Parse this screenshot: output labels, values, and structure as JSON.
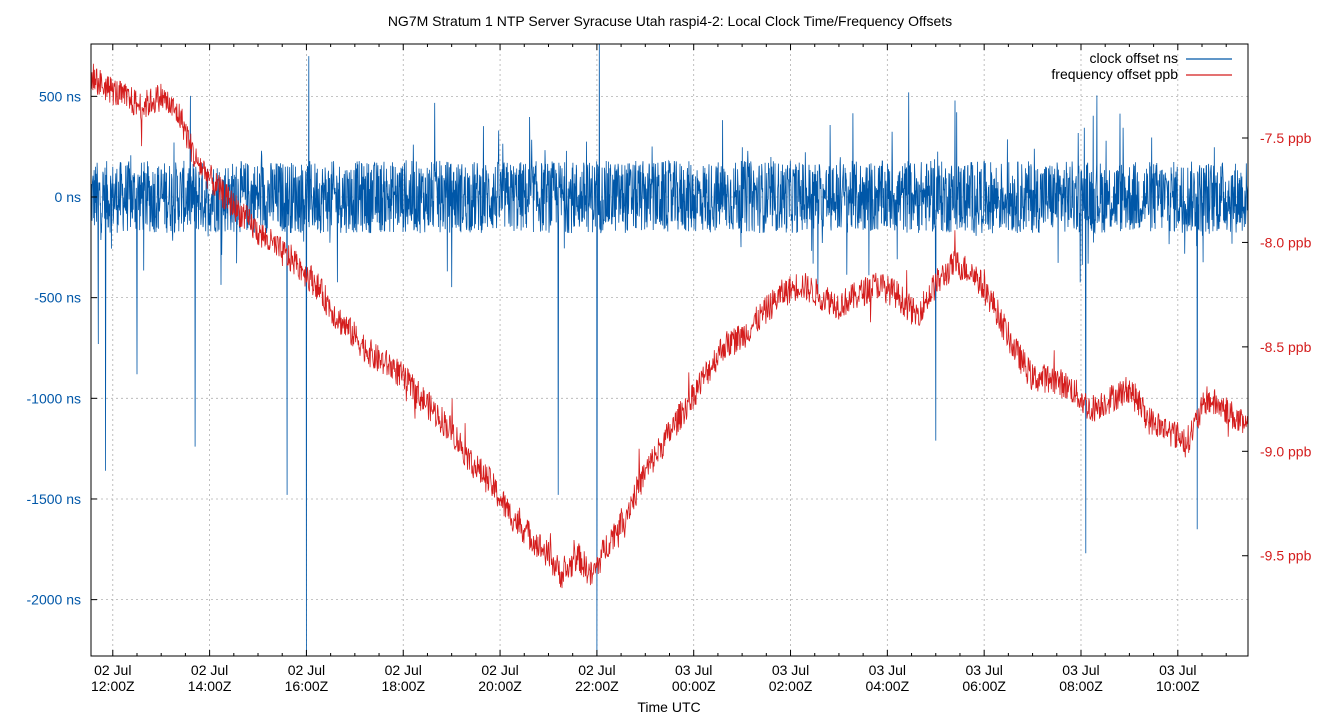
{
  "chart_data": {
    "type": "line",
    "title": "NG7M Stratum 1 NTP Server Syracuse Utah raspi4-2: Local Clock Time/Frequency Offsets",
    "xlabel": "Time UTC",
    "x_range_hours": [
      11.55,
      35.45
    ],
    "x_ticks": [
      {
        "hour": 12,
        "label1": "02 Jul",
        "label2": "12:00Z"
      },
      {
        "hour": 14,
        "label1": "02 Jul",
        "label2": "14:00Z"
      },
      {
        "hour": 16,
        "label1": "02 Jul",
        "label2": "16:00Z"
      },
      {
        "hour": 18,
        "label1": "02 Jul",
        "label2": "18:00Z"
      },
      {
        "hour": 20,
        "label1": "02 Jul",
        "label2": "20:00Z"
      },
      {
        "hour": 22,
        "label1": "02 Jul",
        "label2": "22:00Z"
      },
      {
        "hour": 24,
        "label1": "03 Jul",
        "label2": "00:00Z"
      },
      {
        "hour": 26,
        "label1": "03 Jul",
        "label2": "02:00Z"
      },
      {
        "hour": 28,
        "label1": "03 Jul",
        "label2": "04:00Z"
      },
      {
        "hour": 30,
        "label1": "03 Jul",
        "label2": "06:00Z"
      },
      {
        "hour": 32,
        "label1": "03 Jul",
        "label2": "08:00Z"
      },
      {
        "hour": 34,
        "label1": "03 Jul",
        "label2": "10:00Z"
      }
    ],
    "y_left": {
      "range": [
        -2280,
        760
      ],
      "ticks": [
        500,
        0,
        -500,
        -1000,
        -1500,
        -2000
      ],
      "tick_labels": [
        "500 ns",
        "0 ns",
        "-500 ns",
        "-1000 ns",
        "-1500 ns",
        "-2000 ns"
      ],
      "color": "#0057a8"
    },
    "y_right": {
      "range": [
        -9.98,
        -7.05
      ],
      "ticks": [
        -7.5,
        -8.0,
        -8.5,
        -9.0,
        -9.5
      ],
      "tick_labels": [
        "-7.5 ppb",
        "-8.0 ppb",
        "-8.5 ppb",
        "-9.0 ppb",
        "-9.5 ppb"
      ],
      "color": "#d41c1c"
    },
    "grid": true,
    "legend_position": "top-right",
    "series": [
      {
        "name": "clock offset ns",
        "axis": "left",
        "color": "#0057a8",
        "noise_amplitude_ns": 180,
        "spikes": [
          {
            "hour": 11.7,
            "value": -730
          },
          {
            "hour": 11.85,
            "value": -1360
          },
          {
            "hour": 12.5,
            "value": -880
          },
          {
            "hour": 13.7,
            "value": -1240
          },
          {
            "hour": 16.0,
            "value": -2280
          },
          {
            "hour": 16.05,
            "value": 700
          },
          {
            "hour": 15.6,
            "value": -1480
          },
          {
            "hour": 21.2,
            "value": -1480
          },
          {
            "hour": 22.0,
            "value": -2280
          },
          {
            "hour": 22.05,
            "value": 760
          },
          {
            "hour": 32.1,
            "value": -1770
          },
          {
            "hour": 34.4,
            "value": -1650
          },
          {
            "hour": 29.0,
            "value": -1210
          }
        ]
      },
      {
        "name": "frequency offset ppb",
        "axis": "right",
        "color": "#d41c1c",
        "noise_amplitude_ppb": 0.07,
        "hours": [
          11.55,
          11.8,
          12.2,
          12.6,
          13.0,
          13.4,
          13.7,
          14.2,
          14.6,
          15.0,
          15.5,
          15.8,
          16.2,
          16.6,
          17.0,
          17.4,
          17.8,
          18.2,
          18.6,
          19.0,
          19.4,
          19.8,
          20.2,
          20.6,
          21.0,
          21.3,
          21.6,
          21.9,
          22.2,
          22.6,
          23.0,
          23.4,
          23.8,
          24.2,
          24.6,
          25.0,
          25.4,
          25.8,
          26.2,
          26.6,
          27.0,
          27.4,
          27.8,
          28.2,
          28.6,
          29.0,
          29.4,
          29.8,
          30.2,
          30.6,
          31.0,
          31.4,
          31.8,
          32.2,
          32.6,
          33.0,
          33.4,
          33.8,
          34.2,
          34.6,
          35.0,
          35.45
        ],
        "values": [
          -7.2,
          -7.25,
          -7.3,
          -7.35,
          -7.3,
          -7.4,
          -7.6,
          -7.75,
          -7.85,
          -7.95,
          -8.05,
          -8.1,
          -8.2,
          -8.35,
          -8.45,
          -8.55,
          -8.6,
          -8.7,
          -8.8,
          -8.9,
          -9.05,
          -9.15,
          -9.3,
          -9.4,
          -9.5,
          -9.6,
          -9.5,
          -9.6,
          -9.45,
          -9.3,
          -9.1,
          -8.95,
          -8.8,
          -8.65,
          -8.5,
          -8.45,
          -8.35,
          -8.25,
          -8.2,
          -8.25,
          -8.3,
          -8.25,
          -8.2,
          -8.25,
          -8.35,
          -8.2,
          -8.1,
          -8.15,
          -8.3,
          -8.5,
          -8.65,
          -8.65,
          -8.7,
          -8.8,
          -8.75,
          -8.7,
          -8.85,
          -8.9,
          -8.95,
          -8.75,
          -8.8,
          -8.9
        ]
      }
    ]
  }
}
